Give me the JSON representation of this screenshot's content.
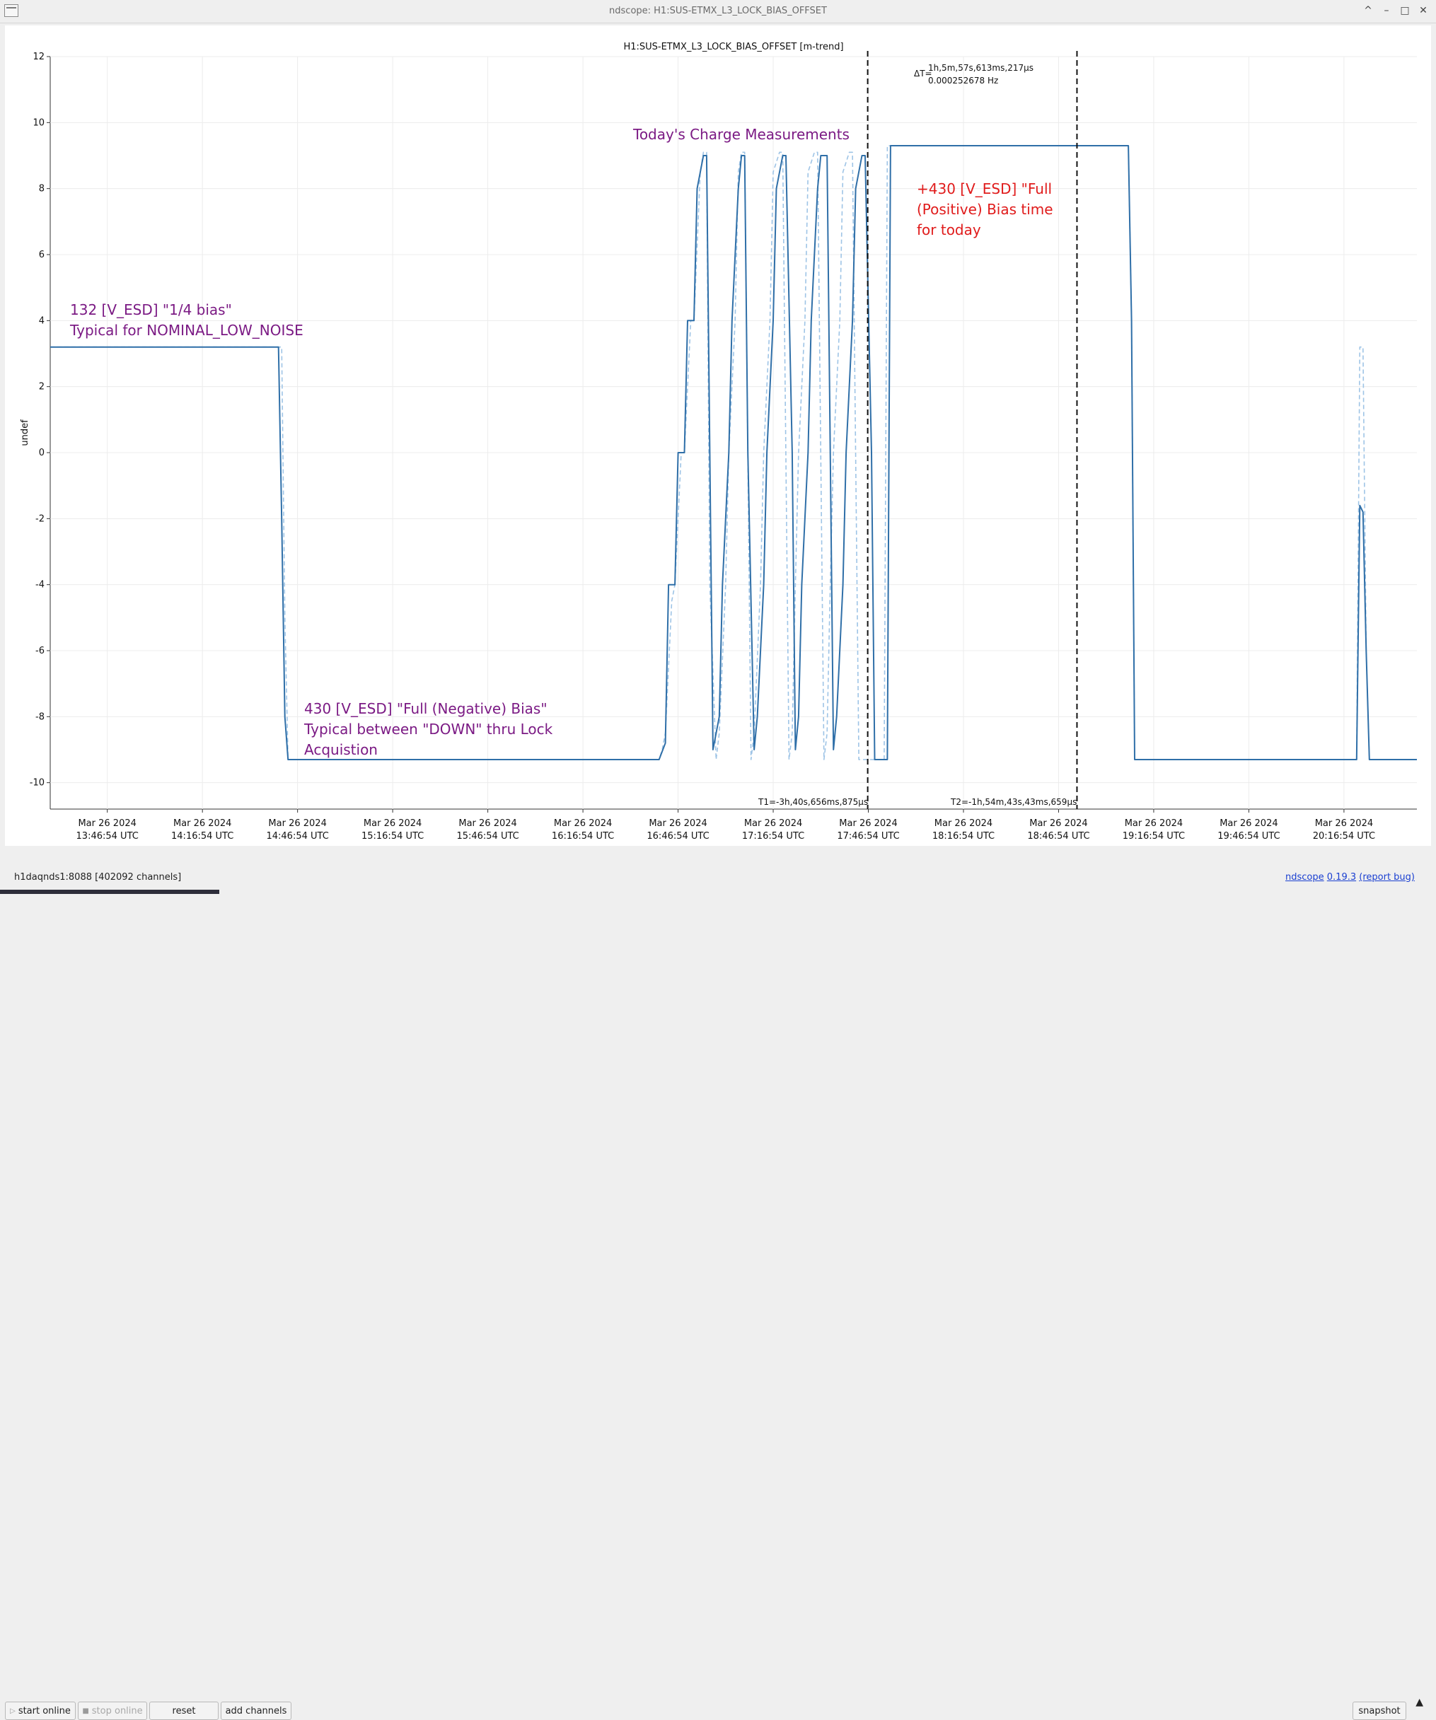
{
  "window": {
    "title": "ndscope: H1:SUS-ETMX_L3_LOCK_BIAS_OFFSET",
    "controls": [
      "^",
      "–",
      "□",
      "✕"
    ]
  },
  "plot": {
    "title": "H1:SUS-ETMX_L3_LOCK_BIAS_OFFSET [m-trend]",
    "ylabel": "undef",
    "yticks": [
      "12",
      "10",
      "8",
      "6",
      "4",
      "2",
      "0",
      "-2",
      "-4",
      "-6",
      "-8",
      "-10"
    ],
    "xticks": [
      {
        "date": "Mar 26 2024",
        "time": "13:46:54 UTC"
      },
      {
        "date": "Mar 26 2024",
        "time": "14:16:54 UTC"
      },
      {
        "date": "Mar 26 2024",
        "time": "14:46:54 UTC"
      },
      {
        "date": "Mar 26 2024",
        "time": "15:16:54 UTC"
      },
      {
        "date": "Mar 26 2024",
        "time": "15:46:54 UTC"
      },
      {
        "date": "Mar 26 2024",
        "time": "16:16:54 UTC"
      },
      {
        "date": "Mar 26 2024",
        "time": "16:46:54 UTC"
      },
      {
        "date": "Mar 26 2024",
        "time": "17:16:54 UTC"
      },
      {
        "date": "Mar 26 2024",
        "time": "17:46:54 UTC"
      },
      {
        "date": "Mar 26 2024",
        "time": "18:16:54 UTC"
      },
      {
        "date": "Mar 26 2024",
        "time": "18:46:54 UTC"
      },
      {
        "date": "Mar 26 2024",
        "time": "19:16:54 UTC"
      },
      {
        "date": "Mar 26 2024",
        "time": "19:46:54 UTC"
      },
      {
        "date": "Mar 26 2024",
        "time": "20:16:54 UTC"
      }
    ],
    "cursors": {
      "delta_label": "ΔT=",
      "delta_time": "1h,5m,57s,613ms,217µs",
      "delta_freq": "0.000252678 Hz",
      "t1_label": "T1=-3h,40s,656ms,875µs",
      "t2_label": "T2=-1h,54m,43s,43ms,659µs"
    },
    "annotations": {
      "quarter_bias": [
        "132 [V_ESD] \"1/4 bias\"",
        "Typical for NOMINAL_LOW_NOISE"
      ],
      "negative_bias": [
        "430 [V_ESD] \"Full (Negative) Bias\"",
        "Typical between \"DOWN\" thru Lock",
        "Acquistion"
      ],
      "charge_title": "Today's Charge Measurements",
      "positive_bias": [
        "+430 [V_ESD] \"Full",
        "(Positive) Bias time",
        "for today"
      ]
    }
  },
  "chart_data": {
    "type": "line",
    "title": "H1:SUS-ETMX_L3_LOCK_BIAS_OFFSET [m-trend]",
    "xlabel": "",
    "ylabel": "undef",
    "x_unit": "minutes after Mar 26 2024 13:46:54 UTC",
    "xlim": [
      -18,
      413
    ],
    "ylim": [
      -10.8,
      12
    ],
    "grid": true,
    "series": [
      {
        "name": "mean",
        "color": "#2f6fa8",
        "x": [
          -18,
          54,
          55,
          56,
          57,
          58,
          174,
          176,
          177,
          179,
          180,
          182,
          183,
          185,
          186,
          188,
          189,
          190,
          191,
          193,
          194,
          196,
          197,
          199,
          200,
          201,
          202,
          204,
          205,
          207,
          208,
          210,
          211,
          213,
          214,
          216,
          217,
          218,
          219,
          221,
          222,
          224,
          225,
          227,
          228,
          229,
          230,
          232,
          233,
          235,
          236,
          238,
          239,
          241,
          242,
          244,
          245,
          246,
          247,
          256,
          257,
          258,
          322,
          323,
          324,
          394,
          395,
          396,
          397,
          398,
          399,
          413
        ],
        "y": [
          3.2,
          3.2,
          -2,
          -8,
          -9.3,
          -9.3,
          -9.3,
          -8.8,
          -4,
          -4,
          0,
          0,
          4,
          4,
          8,
          9,
          9,
          0,
          -9,
          -8,
          -4,
          0,
          4,
          8,
          9,
          9,
          0,
          -9,
          -8,
          -4,
          0,
          4,
          8,
          9,
          9,
          0,
          -9,
          -8,
          -4,
          0,
          4,
          8,
          9,
          9,
          0,
          -9,
          -8,
          -4,
          0,
          4,
          8,
          9,
          9,
          0,
          -9.3,
          -9.3,
          -9.3,
          -9.3,
          9.3,
          9.3,
          9.3,
          9.3,
          9.3,
          4,
          -9.3,
          -9.3,
          -1.6,
          -1.8,
          -6,
          -9.3,
          -9.3,
          -9.3
        ]
      },
      {
        "name": "min/max",
        "color": "#9ec4e6",
        "x": [
          -18,
          54,
          55,
          56,
          57,
          58,
          174,
          175,
          176,
          178,
          179,
          181,
          182,
          184,
          185,
          187,
          188,
          189,
          190,
          192,
          193,
          195,
          196,
          198,
          199,
          200,
          201,
          203,
          204,
          206,
          207,
          209,
          210,
          212,
          213,
          215,
          216,
          217,
          218,
          220,
          221,
          223,
          224,
          226,
          227,
          228,
          229,
          231,
          232,
          234,
          235,
          237,
          238,
          240,
          241,
          242,
          243,
          244,
          245,
          246,
          247,
          256,
          257,
          258,
          322,
          323,
          324,
          394,
          395,
          396,
          397,
          398,
          399,
          413
        ],
        "y": [
          3.2,
          3.2,
          3.2,
          -5,
          -9.3,
          -9.3,
          -9.3,
          -9.0,
          -8.5,
          -4.5,
          -4,
          0,
          0,
          4,
          4,
          8.5,
          9.1,
          9.1,
          -4,
          -9.3,
          -8.5,
          -4,
          0,
          4,
          8.5,
          9.1,
          9.1,
          -9.3,
          -8.5,
          -4,
          0,
          4,
          8.5,
          9.1,
          9.1,
          -9.3,
          -8.5,
          -4,
          0,
          4,
          8.5,
          9.1,
          9.1,
          -9.3,
          -8.5,
          -4,
          0,
          4,
          8.5,
          9.1,
          9.1,
          -9.3,
          -9.3,
          -9.3,
          -9.3,
          -9.3,
          -9.3,
          -9.3,
          -9.3,
          9.3,
          9.3,
          9.3,
          9.3,
          9.3,
          9.3,
          4,
          -9.3,
          -9.3,
          3.2,
          3.2,
          -6,
          -9.3,
          -9.3,
          -9.3
        ]
      }
    ],
    "cursor_lines_x": [
      239.8,
      305.8
    ]
  },
  "toolbar": {
    "start_online": "start online",
    "stop_online": "stop online",
    "reset": "reset",
    "add_channels": "add channels",
    "snapshot": "snapshot",
    "expand": "▲"
  },
  "status": {
    "server": "h1daqnds1:8088  [402092 channels]",
    "app_name": "ndscope",
    "version": "0.19.3",
    "report_bug": "(report bug)"
  }
}
